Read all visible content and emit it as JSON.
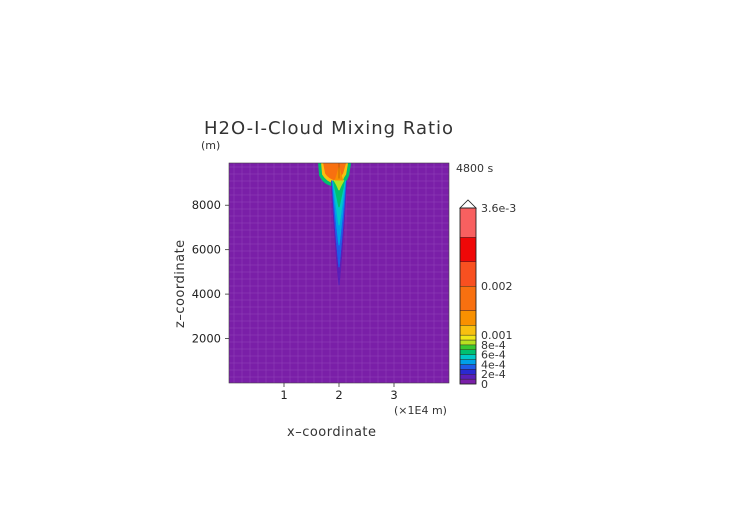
{
  "chart_data": {
    "type": "heatmap",
    "title": "H2O-I-Cloud Mixing Ratio",
    "y_unit_label": "(m)",
    "x_unit_label": "(×1E4 m)",
    "xlabel": "x–coordinate",
    "ylabel": "z–coordinate",
    "time_label": "4800 s",
    "xlim": [
      0,
      4
    ],
    "ylim": [
      0,
      9900
    ],
    "x_ticks": [
      {
        "value": 1,
        "label": "1"
      },
      {
        "value": 2,
        "label": "2"
      },
      {
        "value": 3,
        "label": "3"
      }
    ],
    "y_ticks": [
      {
        "value": 2000,
        "label": "2000"
      },
      {
        "value": 4000,
        "label": "4000"
      },
      {
        "value": 6000,
        "label": "6000"
      },
      {
        "value": 8000,
        "label": "8000"
      }
    ],
    "background_color": "#7a1fa8",
    "plume": {
      "center_x": 2.0,
      "top_z": 9900,
      "anvil_bottom_z": 9200,
      "anvil_left_x": 1.62,
      "anvil_right_x": 2.22,
      "stem_bottom_z": 4400
    },
    "colorbar": {
      "min": 0,
      "max": 0.0036,
      "extend": "max",
      "levels": [
        {
          "value": 0,
          "color": "#7a1fa8"
        },
        {
          "value": 0.0001,
          "color": "#5a1fb8"
        },
        {
          "value": 0.0002,
          "color": "#2a2ad0"
        },
        {
          "value": 0.0003,
          "color": "#1f5ce8"
        },
        {
          "value": 0.0004,
          "color": "#00a0e8"
        },
        {
          "value": 0.0005,
          "color": "#00c8c8"
        },
        {
          "value": 0.0006,
          "color": "#00c070"
        },
        {
          "value": 0.0007,
          "color": "#38c830"
        },
        {
          "value": 0.0008,
          "color": "#b8e020"
        },
        {
          "value": 0.0009,
          "color": "#f0e818"
        },
        {
          "value": 0.001,
          "color": "#f8c010"
        },
        {
          "value": 0.0012,
          "color": "#f89000"
        },
        {
          "value": 0.0015,
          "color": "#f87010"
        },
        {
          "value": 0.002,
          "color": "#f85020"
        },
        {
          "value": 0.0025,
          "color": "#f00808"
        },
        {
          "value": 0.003,
          "color": "#f86060"
        },
        {
          "value": 0.0036,
          "color": "#f8a8a8"
        }
      ],
      "tick_labels": [
        {
          "value": 0,
          "label": "0"
        },
        {
          "value": 0.0002,
          "label": "2e-4"
        },
        {
          "value": 0.0004,
          "label": "4e-4"
        },
        {
          "value": 0.0006,
          "label": "6e-4"
        },
        {
          "value": 0.0008,
          "label": "8e-4"
        },
        {
          "value": 0.001,
          "label": "0.001"
        },
        {
          "value": 0.002,
          "label": "0.002"
        },
        {
          "value": 0.0036,
          "label": "3.6e-3"
        }
      ]
    }
  }
}
